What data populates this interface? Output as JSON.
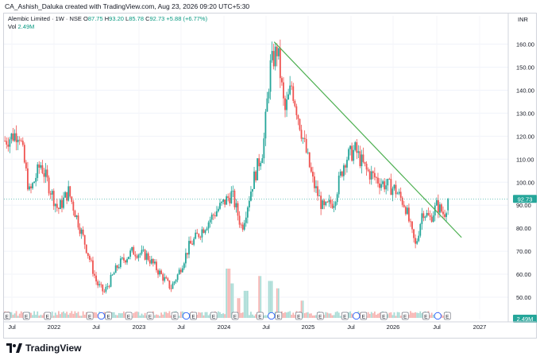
{
  "header": {
    "caption": "CA_Ashish_Daluka created with TradingView.com, Aug 23, 2026 09:20 UTC+5:30",
    "currency": "INR"
  },
  "legend": {
    "symbol": "Alembic Limited · 1W · NSE",
    "o_label": "O",
    "o_value": "87.75",
    "h_label": "H",
    "h_value": "93.20",
    "l_label": "L",
    "l_value": "85.78",
    "c_label": "C",
    "c_value": "92.73",
    "change": "+5.88 (+6.77%)",
    "vol_label": "Vol",
    "vol_value": "2.49M"
  },
  "footer": {
    "brand": "TradingView"
  },
  "colors": {
    "up": "#26a69a",
    "down": "#ef5350",
    "trendline": "#4caf50",
    "last_price_bg": "#26a69a",
    "event_blue": "#2962ff"
  },
  "chart_data": {
    "type": "candlestick",
    "interval": "1W",
    "ylim": [
      45,
      165
    ],
    "y_ticks": [
      50.0,
      60.0,
      70.0,
      80.0,
      90.0,
      100.0,
      110.0,
      120.0,
      130.0,
      140.0,
      150.0,
      160.0
    ],
    "y_tick_labels": [
      "50.00",
      "60.00",
      "70.00",
      "80.00",
      "90.00",
      "100.00",
      "110.00",
      "120.00",
      "130.00",
      "140.00",
      "150.00",
      "160.00"
    ],
    "x_ticks": [
      "Jul",
      "2022",
      "Jul",
      "2023",
      "Jul",
      "2024",
      "Jul",
      "2025",
      "Jul",
      "2026",
      "Jul",
      "2027"
    ],
    "last_price": 92.73,
    "last_price_label": "92.73",
    "last_volume_label": "2.49M",
    "trendline": [
      {
        "date": "2024-08-01",
        "price": 161
      },
      {
        "date": "2026-10-15",
        "price": 76
      }
    ],
    "price_path": [
      {
        "date": "2021-06-01",
        "price": 118
      },
      {
        "date": "2021-08-01",
        "price": 122
      },
      {
        "date": "2021-09-15",
        "price": 95
      },
      {
        "date": "2021-11-01",
        "price": 108
      },
      {
        "date": "2022-01-15",
        "price": 88
      },
      {
        "date": "2022-03-01",
        "price": 96
      },
      {
        "date": "2022-05-15",
        "price": 72
      },
      {
        "date": "2022-07-01",
        "price": 56
      },
      {
        "date": "2022-08-01",
        "price": 52
      },
      {
        "date": "2022-10-01",
        "price": 64
      },
      {
        "date": "2022-12-01",
        "price": 70
      },
      {
        "date": "2023-02-01",
        "price": 68
      },
      {
        "date": "2023-04-01",
        "price": 60
      },
      {
        "date": "2023-05-15",
        "price": 54
      },
      {
        "date": "2023-06-15",
        "price": 60
      },
      {
        "date": "2023-08-01",
        "price": 72
      },
      {
        "date": "2023-10-01",
        "price": 80
      },
      {
        "date": "2023-12-01",
        "price": 88
      },
      {
        "date": "2024-02-01",
        "price": 95
      },
      {
        "date": "2024-03-15",
        "price": 80
      },
      {
        "date": "2024-05-01",
        "price": 100
      },
      {
        "date": "2024-06-15",
        "price": 115
      },
      {
        "date": "2024-07-15",
        "price": 150
      },
      {
        "date": "2024-08-15",
        "price": 158
      },
      {
        "date": "2024-09-15",
        "price": 130
      },
      {
        "date": "2024-10-15",
        "price": 142
      },
      {
        "date": "2024-12-01",
        "price": 120
      },
      {
        "date": "2025-01-15",
        "price": 100
      },
      {
        "date": "2025-03-01",
        "price": 88
      },
      {
        "date": "2025-04-15",
        "price": 92
      },
      {
        "date": "2025-06-01",
        "price": 110
      },
      {
        "date": "2025-07-15",
        "price": 114
      },
      {
        "date": "2025-09-01",
        "price": 105
      },
      {
        "date": "2025-11-01",
        "price": 100
      },
      {
        "date": "2026-01-01",
        "price": 97
      },
      {
        "date": "2026-02-15",
        "price": 90
      },
      {
        "date": "2026-03-15",
        "price": 78
      },
      {
        "date": "2026-04-01",
        "price": 72
      },
      {
        "date": "2026-05-01",
        "price": 88
      },
      {
        "date": "2026-06-01",
        "price": 84
      },
      {
        "date": "2026-07-01",
        "price": 90
      },
      {
        "date": "2026-08-01",
        "price": 86
      },
      {
        "date": "2026-08-20",
        "price": 92.73
      }
    ],
    "volume_spikes": [
      {
        "date": "2024-01-15",
        "value": 1.0
      },
      {
        "date": "2024-02-01",
        "value": 0.7
      },
      {
        "date": "2024-03-01",
        "value": 0.4
      },
      {
        "date": "2024-04-01",
        "value": 0.55
      },
      {
        "date": "2024-06-01",
        "value": 0.85
      },
      {
        "date": "2024-07-15",
        "value": 0.75
      },
      {
        "date": "2024-08-15",
        "value": 0.6
      },
      {
        "date": "2024-12-01",
        "value": 0.35
      }
    ],
    "events": [
      {
        "date": "2021-06-10",
        "kind": "E"
      },
      {
        "date": "2021-09-01",
        "kind": "E"
      },
      {
        "date": "2021-12-01",
        "kind": "E"
      },
      {
        "date": "2022-06-01",
        "kind": "E"
      },
      {
        "date": "2022-07-20",
        "kind": "div"
      },
      {
        "date": "2022-08-20",
        "kind": "E"
      },
      {
        "date": "2022-11-15",
        "kind": "E"
      },
      {
        "date": "2023-02-15",
        "kind": "E"
      },
      {
        "date": "2023-06-01",
        "kind": "E"
      },
      {
        "date": "2023-07-20",
        "kind": "div"
      },
      {
        "date": "2023-08-20",
        "kind": "E"
      },
      {
        "date": "2023-11-15",
        "kind": "E"
      },
      {
        "date": "2024-02-15",
        "kind": "E"
      },
      {
        "date": "2024-06-01",
        "kind": "E"
      },
      {
        "date": "2024-07-20",
        "kind": "div"
      },
      {
        "date": "2024-08-20",
        "kind": "E"
      },
      {
        "date": "2024-11-15",
        "kind": "E"
      },
      {
        "date": "2025-02-15",
        "kind": "E"
      },
      {
        "date": "2025-06-01",
        "kind": "E"
      },
      {
        "date": "2025-07-20",
        "kind": "div"
      },
      {
        "date": "2025-08-20",
        "kind": "E"
      },
      {
        "date": "2025-11-15",
        "kind": "E"
      },
      {
        "date": "2026-02-15",
        "kind": "E"
      },
      {
        "date": "2026-05-15",
        "kind": "E"
      },
      {
        "date": "2026-07-05",
        "kind": "div"
      },
      {
        "date": "2026-08-15",
        "kind": "E"
      }
    ]
  }
}
